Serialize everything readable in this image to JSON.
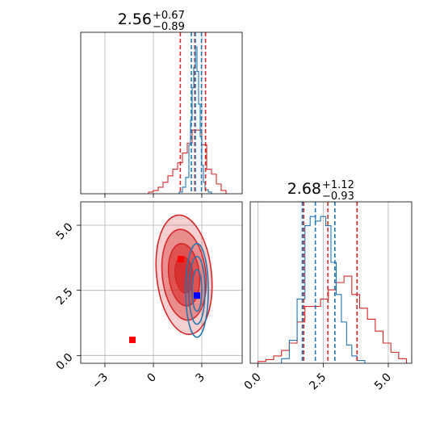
{
  "chart_data": [
    {
      "type": "histogram",
      "panel": "top-left",
      "title": {
        "value": "2.56",
        "sup": "+0.67",
        "sub": "−0.89"
      },
      "xlim": [
        -4.5,
        5.5
      ],
      "grid": true,
      "xticks": [
        -3,
        0,
        3
      ],
      "quantile_lines": [
        {
          "series": "red",
          "x": [
            1.67,
            2.56,
            3.23
          ]
        },
        {
          "series": "blue",
          "x": [
            2.35,
            2.6,
            2.98
          ]
        }
      ],
      "series": [
        {
          "name": "",
          "color": "#d62728",
          "x_edges": [
            -0.3,
            0.0,
            0.3,
            0.6,
            0.9,
            1.2,
            1.5,
            1.8,
            2.1,
            2.4,
            2.7,
            3.0,
            3.3,
            3.6,
            3.9,
            4.2,
            4.5
          ],
          "values": [
            2,
            4,
            8,
            14,
            22,
            30,
            38,
            50,
            62,
            78,
            78,
            60,
            30,
            24,
            12,
            4
          ]
        },
        {
          "name": "",
          "color": "#1f77b4",
          "x_edges": [
            1.6,
            1.8,
            2.0,
            2.2,
            2.3,
            2.4,
            2.5,
            2.6,
            2.7,
            2.8,
            2.9,
            3.0,
            3.1,
            3.2,
            3.4,
            3.6
          ],
          "values": [
            2,
            8,
            20,
            60,
            90,
            130,
            155,
            180,
            150,
            110,
            70,
            35,
            14,
            5,
            2
          ]
        }
      ]
    },
    {
      "type": "contour",
      "panel": "bottom-left",
      "xlim": [
        -4.5,
        5.5
      ],
      "ylim": [
        -0.3,
        5.9
      ],
      "grid": true,
      "xticks": [
        -3,
        0,
        3
      ],
      "yticks": [
        0.0,
        2.5,
        5.0
      ],
      "ytick_labels": [
        "0.0",
        "2.5",
        "5.0"
      ],
      "series": [
        {
          "name": "",
          "color": "#d62728",
          "center": [
            1.9,
            3.1
          ],
          "levels": [
            [
              1.7,
              2.3
            ],
            [
              1.35,
              1.75
            ],
            [
              0.95,
              1.2
            ],
            [
              0.55,
              0.7
            ]
          ]
        },
        {
          "name": "",
          "color": "#1f77b4",
          "center": [
            2.7,
            2.5
          ],
          "levels": [
            [
              0.7,
              1.8
            ],
            [
              0.5,
              1.3
            ],
            [
              0.3,
              0.8
            ]
          ]
        }
      ],
      "markers": [
        {
          "color": "#ff0000",
          "x": -1.3,
          "y": 0.6
        },
        {
          "color": "#ff0000",
          "x": 1.7,
          "y": 3.7
        },
        {
          "color": "#0000ff",
          "x": 2.7,
          "y": 2.3
        }
      ]
    },
    {
      "type": "histogram",
      "panel": "bottom-right",
      "title": {
        "value": "2.68",
        "sup": "+1.12",
        "sub": "−0.93"
      },
      "xlim": [
        -0.3,
        5.9
      ],
      "grid": true,
      "xticks": [
        0.0,
        2.5,
        5.0
      ],
      "xtick_labels": [
        "0.0",
        "2.5",
        "5.0"
      ],
      "quantile_lines": [
        {
          "series": "red",
          "x": [
            1.75,
            2.68,
            3.8
          ]
        },
        {
          "series": "blue",
          "x": [
            1.7,
            2.2,
            2.95
          ]
        }
      ],
      "series": [
        {
          "name": "",
          "color": "#d62728",
          "x_edges": [
            0.0,
            0.3,
            0.6,
            0.9,
            1.2,
            1.5,
            1.8,
            2.1,
            2.4,
            2.7,
            3.0,
            3.3,
            3.6,
            3.9,
            4.2,
            4.5,
            4.8,
            5.1,
            5.4,
            5.7
          ],
          "values": [
            2,
            4,
            8,
            14,
            22,
            45,
            62,
            62,
            70,
            80,
            88,
            95,
            75,
            60,
            48,
            35,
            22,
            12,
            5
          ]
        },
        {
          "name": "",
          "color": "#1f77b4",
          "x_edges": [
            0.9,
            1.2,
            1.5,
            1.8,
            2.0,
            2.2,
            2.4,
            2.6,
            2.8,
            3.0,
            3.2,
            3.4,
            3.6,
            3.8,
            4.1
          ],
          "values": [
            5,
            25,
            70,
            150,
            160,
            155,
            160,
            150,
            110,
            75,
            45,
            20,
            8,
            3
          ]
        }
      ]
    }
  ]
}
